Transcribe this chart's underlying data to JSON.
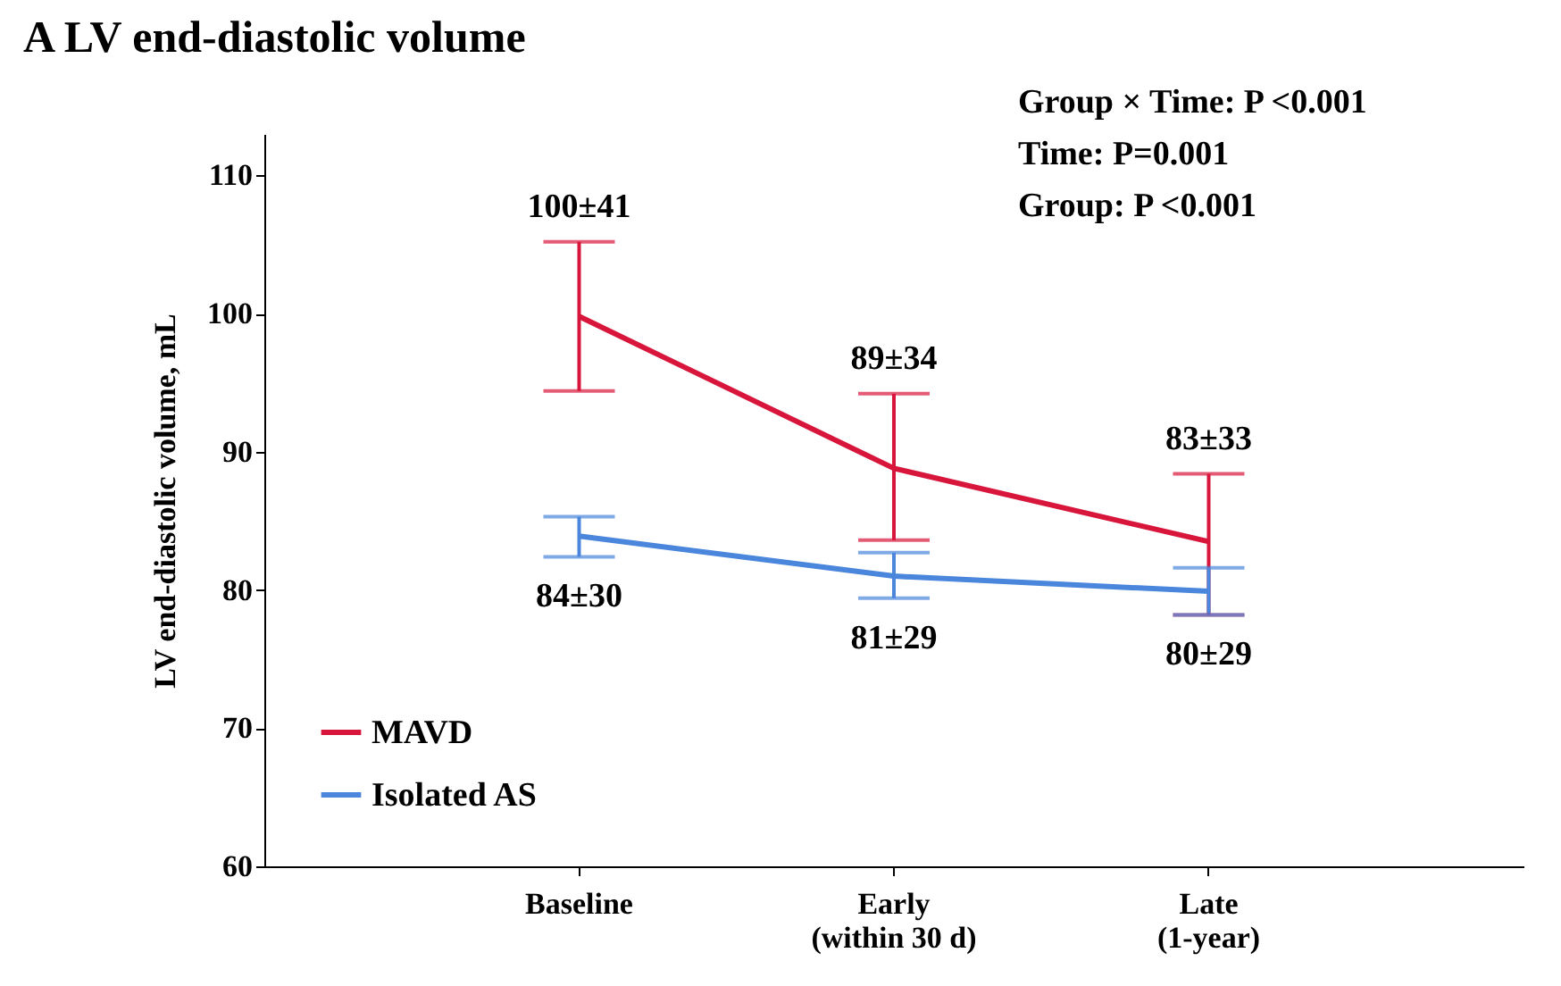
{
  "chart_data": {
    "type": "line",
    "title": "A  LV end-diastolic volume",
    "ylabel": "LV end-diastolic volume, mL",
    "categories": [
      "Baseline",
      "Early\n(within 30 d)",
      "Late\n(1-year)"
    ],
    "series": [
      {
        "name": "MAVD",
        "color": "#d8163c",
        "values": [
          99.8,
          88.8,
          83.5
        ],
        "errors": [
          [
            94.4,
            105.2
          ],
          [
            83.6,
            94.2
          ],
          [
            78.2,
            88.4
          ]
        ],
        "value_labels": [
          "100±41",
          "89±34",
          "83±33"
        ]
      },
      {
        "name": "Isolated AS",
        "color": "#4a86dc",
        "values": [
          83.9,
          81.0,
          79.9
        ],
        "errors": [
          [
            82.4,
            85.3
          ],
          [
            79.4,
            82.7
          ],
          [
            78.2,
            81.6
          ]
        ],
        "value_labels": [
          "84±30",
          "81±29",
          "80±29"
        ]
      }
    ],
    "ylim": [
      60,
      113
    ],
    "yticks": [
      60,
      70,
      80,
      90,
      100,
      110
    ],
    "grid": false,
    "legend": "bottom left",
    "marker": "none",
    "line_style": "solid",
    "annotations": [
      "Group × Time: P <0.001",
      "Time: P=0.001",
      "Group: P <0.001"
    ]
  }
}
